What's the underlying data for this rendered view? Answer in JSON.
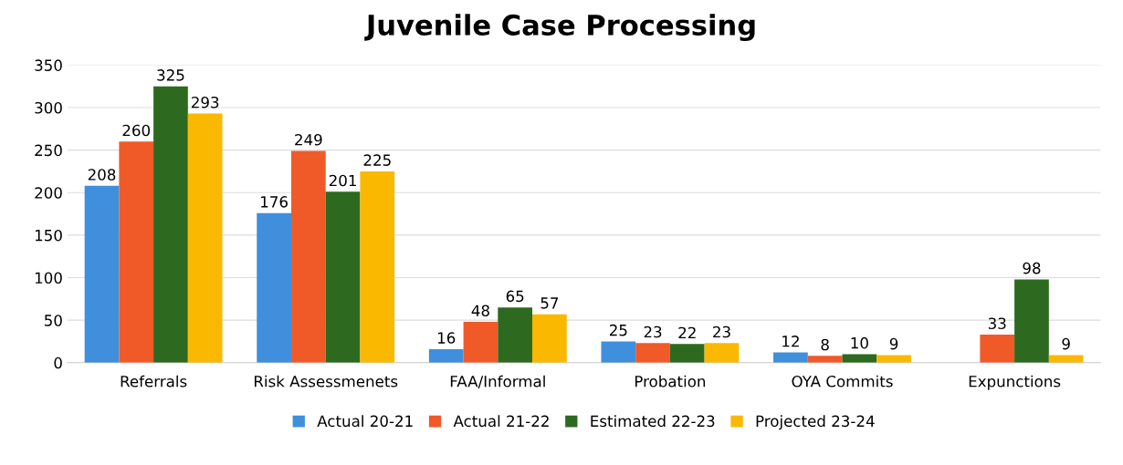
{
  "chart_data": {
    "type": "bar",
    "title": "Juvenile Case Processing",
    "categories": [
      "Referrals",
      "Risk Assessmenets",
      "FAA/Informal",
      "Probation",
      "OYA Commits",
      "Expunctions"
    ],
    "series": [
      {
        "name": "Actual 20-21",
        "color": "#3f8fdc",
        "values": [
          208,
          176,
          16,
          25,
          12,
          null
        ]
      },
      {
        "name": "Actual 21-22",
        "color": "#f05a28",
        "values": [
          260,
          249,
          48,
          23,
          8,
          33
        ]
      },
      {
        "name": "Estimated 22-23",
        "color": "#2d6a1f",
        "values": [
          325,
          201,
          65,
          22,
          10,
          98
        ]
      },
      {
        "name": "Projected 23-24",
        "color": "#fbb800",
        "values": [
          293,
          225,
          57,
          23,
          9,
          9
        ]
      }
    ],
    "ylim": [
      0,
      350
    ],
    "yticks": [
      0,
      50,
      100,
      150,
      200,
      250,
      300,
      350
    ],
    "grid": "y",
    "legend": "bottom",
    "data_labels": true
  }
}
